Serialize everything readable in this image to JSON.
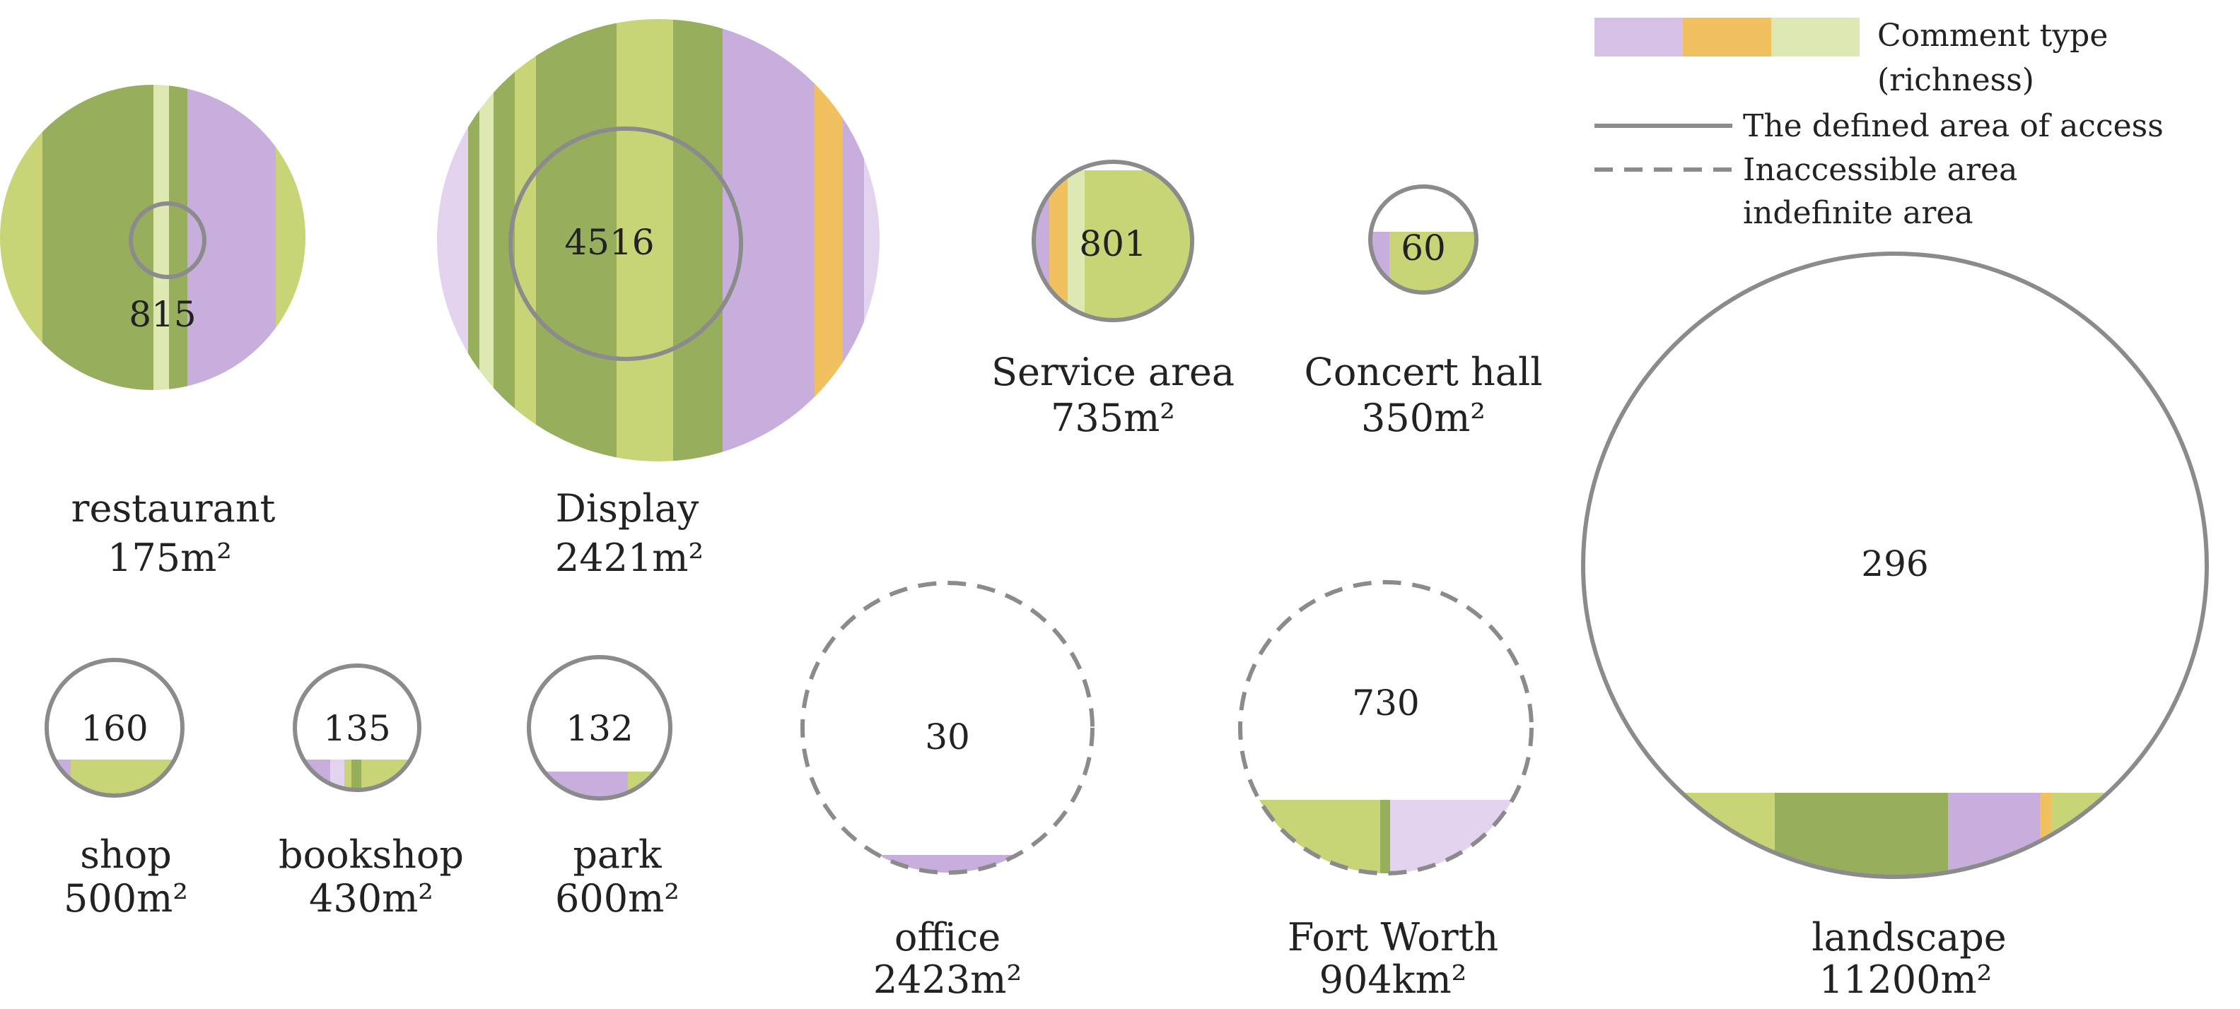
{
  "legend": {
    "comment_type_title": "Comment type",
    "comment_type_subtitle": "(richness)",
    "swatch_colors": [
      "#d6c0e6",
      "#f1c15f",
      "#dee8b3"
    ],
    "defined_area_label": "The defined area of access",
    "inaccessible_label": "Inaccessible area",
    "indefinite_label": "indefinite area",
    "line_color": "#8b8b8b"
  },
  "palette": {
    "dark_olive": "#97ae5d",
    "yellow_green": "#c8d475",
    "light_green": "#dee8b3",
    "purple": "#c8aedd",
    "light_purple": "#e3d3ef",
    "orange": "#f1c15f",
    "outline": "#8b8b8b"
  },
  "places": [
    {
      "id": "restaurant",
      "value": "815",
      "name": "restaurant",
      "area": "175m²",
      "boundary": "none",
      "fill_fraction": 1.0
    },
    {
      "id": "display",
      "value": "4516",
      "name": "Display",
      "area": "2421m²",
      "boundary": "none",
      "fill_fraction": 1.0
    },
    {
      "id": "service-area",
      "value": "801",
      "name": "Service area",
      "area": "735m²",
      "boundary": "solid",
      "fill_fraction": 0.87
    },
    {
      "id": "concert-hall",
      "value": "60",
      "name": "Concert hall",
      "area": "350m²",
      "boundary": "solid",
      "fill_fraction": 0.62
    },
    {
      "id": "landscape",
      "value": "296",
      "name": "landscape",
      "area": "11200m²",
      "boundary": "solid",
      "fill_fraction": 0.18
    },
    {
      "id": "shop",
      "value": "160",
      "name": "shop",
      "area": "500m²",
      "boundary": "solid",
      "fill_fraction": 0.27
    },
    {
      "id": "bookshop",
      "value": "135",
      "name": "bookshop",
      "area": "430m²",
      "boundary": "solid",
      "fill_fraction": 0.27
    },
    {
      "id": "park",
      "value": "132",
      "name": "park",
      "area": "600m²",
      "boundary": "solid",
      "fill_fraction": 0.19
    },
    {
      "id": "office",
      "value": "30",
      "name": "office",
      "area": "2423m²",
      "boundary": "dashed",
      "fill_fraction": 0.06
    },
    {
      "id": "fort-worth",
      "value": "730",
      "name": "Fort Worth",
      "area": "904km²",
      "boundary": "dashed",
      "fill_fraction": 0.27
    }
  ]
}
